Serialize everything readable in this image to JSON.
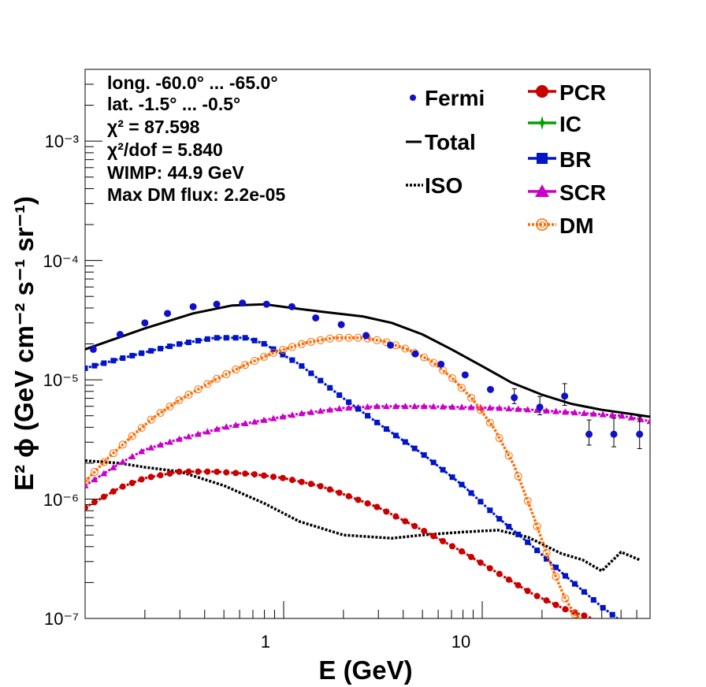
{
  "info": {
    "lines": [
      "long. -60.0° ... -65.0°",
      "lat. -1.5° ... -0.5°",
      "χ² = 87.598",
      "χ²/dof = 5.840",
      "WIMP: 44.9 GeV",
      "Max DM flux: 2.2e-05"
    ]
  },
  "colors": {
    "fermi": "#1010c8",
    "total": "#000000",
    "iso": "#000000",
    "pcr": "#c80000",
    "ic": "#00a000",
    "br": "#0014c8",
    "scr": "#c800c8",
    "dm": "#ff6a00"
  },
  "chart_data": {
    "type": "line",
    "xlabel": "E (GeV)",
    "ylabel": "E² ϕ (GeV cm⁻² s⁻¹ sr⁻¹)",
    "xscale": "log",
    "yscale": "log",
    "xlim": [
      0.1,
      70
    ],
    "ylim": [
      1e-07,
      0.004
    ],
    "xticks": [
      "1",
      "10"
    ],
    "yticks": [
      "10⁻⁷",
      "10⁻⁶",
      "10⁻⁵",
      "10⁻⁴",
      "10⁻³"
    ],
    "legend_left": [
      "Fermi",
      "Total",
      "ISO"
    ],
    "legend_right": [
      "PCR",
      "IC",
      "BR",
      "SCR",
      "DM"
    ],
    "legend_placement": "top-right",
    "series": [
      {
        "name": "Fermi",
        "style": "points",
        "x": [
          0.11,
          0.15,
          0.2,
          0.26,
          0.35,
          0.46,
          0.62,
          0.82,
          1.1,
          1.45,
          1.95,
          2.6,
          3.45,
          4.6,
          6.2,
          8.2,
          11,
          14.5,
          19.5,
          26,
          34.5,
          46,
          62
        ],
        "y": [
          1.8e-05,
          2.4e-05,
          3e-05,
          3.6e-05,
          4.1e-05,
          4.3e-05,
          4.4e-05,
          4.3e-05,
          4.1e-05,
          3.3e-05,
          2.9e-05,
          2.35e-05,
          1.95e-05,
          1.65e-05,
          1.35e-05,
          1.1e-05,
          8.3e-06,
          7.1e-06,
          5.9e-06,
          7.3e-06,
          3.5e-06,
          3.5e-06,
          3.5e-06
        ]
      },
      {
        "name": "Total",
        "style": "solid",
        "x": [
          0.1,
          0.2,
          0.35,
          0.55,
          0.8,
          1.1,
          1.6,
          2.5,
          3.5,
          5,
          7,
          10,
          14,
          20,
          28,
          40,
          55,
          70
        ],
        "y": [
          1.8e-05,
          2.7e-05,
          3.6e-05,
          4.2e-05,
          4.3e-05,
          4e-05,
          3.7e-05,
          3.4e-05,
          3e-05,
          2.4e-05,
          1.8e-05,
          1.3e-05,
          9.5e-06,
          7.5e-06,
          6.3e-06,
          5.6e-06,
          5.2e-06,
          4.9e-06
        ]
      },
      {
        "name": "ISO",
        "style": "dotted",
        "x": [
          0.1,
          0.15,
          0.2,
          0.3,
          0.5,
          0.8,
          1.2,
          2,
          3.5,
          5,
          8,
          12,
          17,
          25,
          32,
          40,
          50,
          62
        ],
        "y": [
          2.1e-06,
          2e-06,
          1.85e-06,
          1.7e-06,
          1.3e-06,
          9.2e-07,
          6.5e-07,
          5e-07,
          4.7e-07,
          5e-07,
          5.3e-07,
          5.5e-07,
          4.8e-07,
          3.5e-07,
          3.1e-07,
          2.5e-07,
          3.6e-07,
          3.1e-07
        ]
      },
      {
        "name": "PCR",
        "style": "dots-line",
        "x": [
          0.1,
          0.15,
          0.2,
          0.3,
          0.45,
          0.7,
          1,
          1.5,
          2,
          3,
          5,
          8,
          12,
          18,
          26,
          36
        ],
        "y": [
          8.5e-07,
          1.25e-06,
          1.5e-06,
          1.7e-06,
          1.7e-06,
          1.62e-06,
          1.5e-06,
          1.3e-06,
          1.1e-06,
          8.5e-07,
          5.5e-07,
          3.6e-07,
          2.4e-07,
          1.6e-07,
          1.2e-07,
          1e-07
        ]
      },
      {
        "name": "BR",
        "style": "squares-line",
        "x": [
          0.1,
          0.15,
          0.2,
          0.3,
          0.45,
          0.65,
          0.8,
          1.2,
          2,
          3,
          5,
          8,
          12,
          18,
          26,
          40,
          48
        ],
        "y": [
          1.25e-05,
          1.5e-05,
          1.7e-05,
          2e-05,
          2.25e-05,
          2.25e-05,
          2e-05,
          1.35e-05,
          7e-06,
          4.3e-06,
          2.4e-06,
          1.3e-06,
          7e-07,
          4e-07,
          2.3e-07,
          1.25e-07,
          1e-07
        ]
      },
      {
        "name": "SCR",
        "style": "triangles-line",
        "x": [
          0.1,
          0.15,
          0.2,
          0.3,
          0.5,
          0.8,
          1.2,
          2,
          3,
          5,
          8,
          12,
          18,
          30,
          50,
          70
        ],
        "y": [
          1.3e-06,
          2e-06,
          2.6e-06,
          3.2e-06,
          4e-06,
          4.6e-06,
          5.2e-06,
          5.8e-06,
          6e-06,
          6e-06,
          5.9e-06,
          5.8e-06,
          5.6e-06,
          5.3e-06,
          5e-06,
          4.5e-06
        ]
      },
      {
        "name": "DM",
        "style": "circles-dotted",
        "x": [
          0.1,
          0.13,
          0.17,
          0.22,
          0.3,
          0.45,
          0.65,
          0.9,
          1.3,
          1.8,
          2.5,
          3.2,
          4.2,
          5.5,
          7,
          9,
          11.5,
          14.5,
          18,
          22,
          26,
          29,
          31
        ],
        "y": [
          1.4e-06,
          2.2e-06,
          3.3e-06,
          4.8e-06,
          6.8e-06,
          1e-05,
          1.35e-05,
          1.7e-05,
          2.05e-05,
          2.25e-05,
          2.25e-05,
          2.1e-05,
          1.8e-05,
          1.45e-05,
          1.05e-05,
          6.8e-06,
          3.9e-06,
          1.9e-06,
          7.4e-07,
          2.9e-07,
          1.5e-07,
          1.1e-07,
          1e-07
        ]
      }
    ]
  }
}
